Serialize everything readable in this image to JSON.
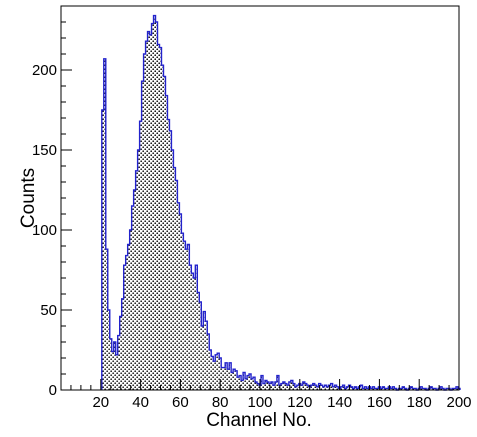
{
  "chart_data": {
    "type": "bar",
    "xlabel": "Channel No.",
    "ylabel": "Counts",
    "xlim": [
      0,
      200
    ],
    "ylim": [
      0,
      240
    ],
    "x_ticks": [
      20,
      40,
      60,
      80,
      100,
      120,
      140,
      160,
      180,
      200
    ],
    "y_ticks": [
      0,
      50,
      100,
      150,
      200
    ],
    "grid": false,
    "colors": {
      "histogram_line": "#2222cc",
      "histogram_fill": "#000000",
      "axis": "#000000",
      "background": "#ffffff"
    },
    "bin_width": 1,
    "x": [
      21,
      22,
      23,
      24,
      25,
      26,
      27,
      28,
      29,
      30,
      31,
      32,
      33,
      34,
      35,
      36,
      37,
      38,
      39,
      40,
      41,
      42,
      43,
      44,
      45,
      46,
      47,
      48,
      49,
      50,
      51,
      52,
      53,
      54,
      55,
      56,
      57,
      58,
      59,
      60,
      61,
      62,
      63,
      64,
      65,
      66,
      67,
      68,
      69,
      70,
      71,
      72,
      73,
      74,
      75,
      76,
      77,
      78,
      79,
      80,
      81,
      82,
      83,
      84,
      85,
      86,
      87,
      88,
      89,
      90,
      91,
      92,
      93,
      94,
      95,
      96,
      97,
      98,
      99,
      100,
      101,
      102,
      103,
      104,
      105,
      106,
      107,
      108,
      109,
      110,
      111,
      112,
      113,
      114,
      115,
      116,
      117,
      118,
      119,
      120,
      121,
      122,
      123,
      124,
      125,
      126,
      127,
      128,
      129,
      130,
      131,
      132,
      133,
      134,
      135,
      136,
      137,
      138,
      139,
      140,
      141,
      142,
      143,
      144,
      145,
      146,
      147,
      148,
      149,
      150,
      151,
      152,
      153,
      154,
      155,
      156,
      157,
      158,
      159,
      160,
      161,
      162,
      163,
      164,
      165,
      166,
      167,
      168,
      169,
      170,
      171,
      172,
      173,
      174,
      175,
      176,
      177,
      178,
      179,
      180,
      181,
      182,
      183,
      184,
      185,
      186,
      187,
      188,
      189,
      190,
      191,
      192,
      193,
      194,
      195,
      196,
      197,
      198,
      199,
      200
    ],
    "values": [
      175,
      207,
      88,
      50,
      32,
      24,
      30,
      22,
      34,
      46,
      57,
      78,
      84,
      91,
      100,
      115,
      125,
      137,
      150,
      168,
      193,
      210,
      218,
      224,
      222,
      229,
      234,
      230,
      216,
      214,
      203,
      196,
      184,
      169,
      162,
      150,
      139,
      131,
      117,
      110,
      98,
      93,
      88,
      91,
      78,
      73,
      70,
      78,
      61,
      55,
      40,
      49,
      43,
      35,
      25,
      21,
      18,
      22,
      23,
      20,
      14,
      14,
      17,
      13,
      17,
      11,
      13,
      12,
      8,
      9,
      6,
      11,
      7,
      9,
      10,
      7,
      8,
      5,
      4,
      3,
      9,
      4,
      6,
      5,
      4,
      5,
      3,
      5,
      9,
      3,
      4,
      5,
      4,
      3,
      5,
      6,
      4,
      2,
      3,
      4,
      3,
      5,
      4,
      3,
      2,
      3,
      4,
      3,
      2,
      4,
      3,
      2,
      3,
      2,
      3,
      4,
      2,
      3,
      2,
      1,
      2,
      3,
      1,
      2,
      3,
      2,
      1,
      2,
      1,
      2,
      3,
      1,
      2,
      1,
      2,
      1,
      2,
      1,
      1,
      2,
      1,
      2,
      1,
      1,
      2,
      1,
      2,
      1,
      0,
      1,
      1,
      2,
      1,
      0,
      1,
      2,
      1,
      1,
      0,
      1,
      2,
      1,
      1,
      0,
      1,
      2,
      1,
      1,
      0,
      1,
      2,
      1,
      0,
      1,
      1,
      0,
      1,
      1,
      2,
      1
    ]
  }
}
